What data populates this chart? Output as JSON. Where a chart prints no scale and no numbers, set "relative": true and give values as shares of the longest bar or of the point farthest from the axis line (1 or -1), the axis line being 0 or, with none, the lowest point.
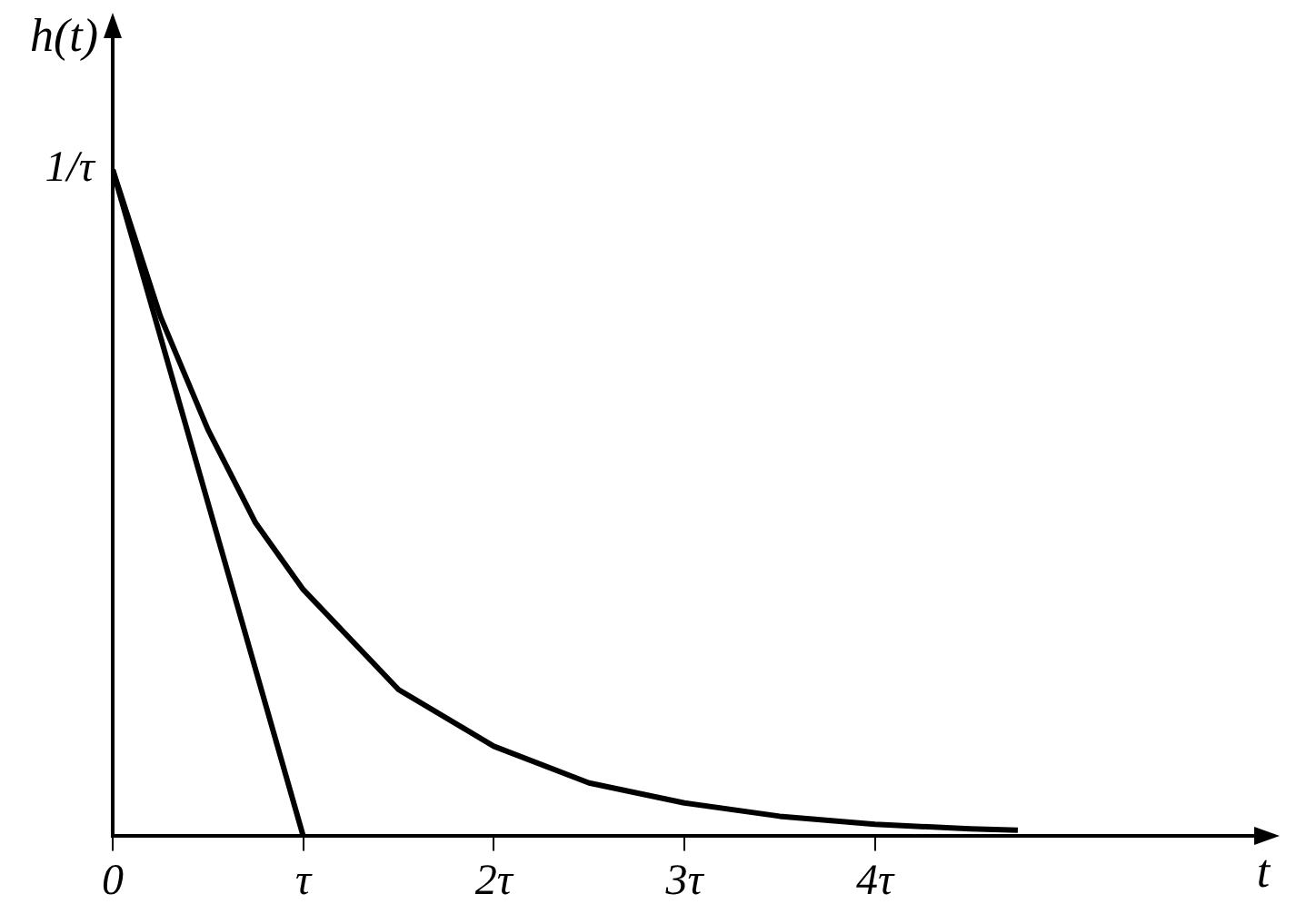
{
  "chart_data": {
    "type": "line",
    "xlabel": "t",
    "ylabel": "h(t)",
    "relative": true,
    "x": [
      0,
      0.25,
      0.5,
      0.75,
      1,
      1.5,
      2,
      2.5,
      3,
      3.5,
      4,
      4.5,
      4.75
    ],
    "series": [
      {
        "color": "#000000",
        "values": [
          1,
          0.78,
          0.61,
          0.47,
          0.37,
          0.22,
          0.135,
          0.08,
          0.05,
          0.03,
          0.018,
          0.011,
          0.009
        ]
      },
      {
        "type": "line",
        "color": "#000000",
        "x": [
          0,
          1
        ],
        "values": [
          1,
          0
        ]
      }
    ],
    "xlim": [
      0,
      6
    ],
    "xticks": [
      {
        "value": 0,
        "label": "0"
      },
      {
        "value": 1,
        "label": "τ"
      },
      {
        "value": 2,
        "label": "2τ"
      },
      {
        "value": 3,
        "label": "3τ"
      },
      {
        "value": 4,
        "label": "4τ"
      }
    ],
    "annotations": [
      {
        "text": "1/τ",
        "x": 0,
        "y": 1
      }
    ],
    "grid": false,
    "legend": false,
    "marker": "none",
    "line_style": "solid"
  }
}
